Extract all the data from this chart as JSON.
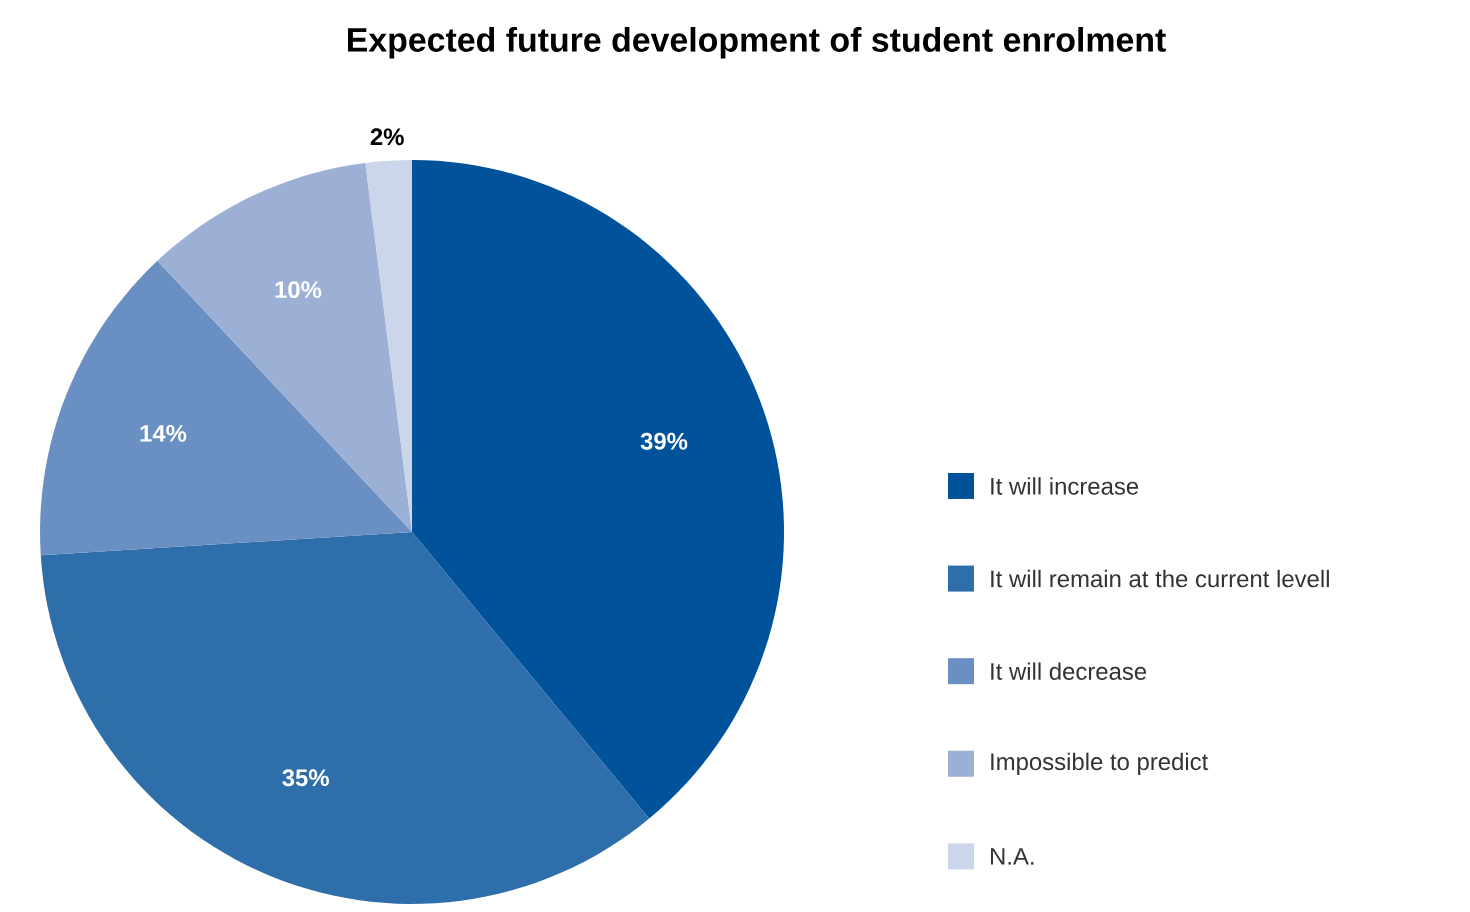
{
  "chart_data": {
    "type": "pie",
    "title": "Expected future development of student enrolment",
    "categories": [
      "It will increase",
      "It will remain at the current levell",
      "It will decrease",
      "Impossible to predict",
      "N.A."
    ],
    "values": [
      39,
      35,
      14,
      10,
      2
    ],
    "value_labels": [
      "39%",
      "35%",
      "14%",
      "10%",
      "2%"
    ],
    "colors": [
      "#00539a",
      "#2e6eab",
      "#6a8fc2",
      "#9cb0d6",
      "#ccd6eb"
    ],
    "legend": "right"
  }
}
